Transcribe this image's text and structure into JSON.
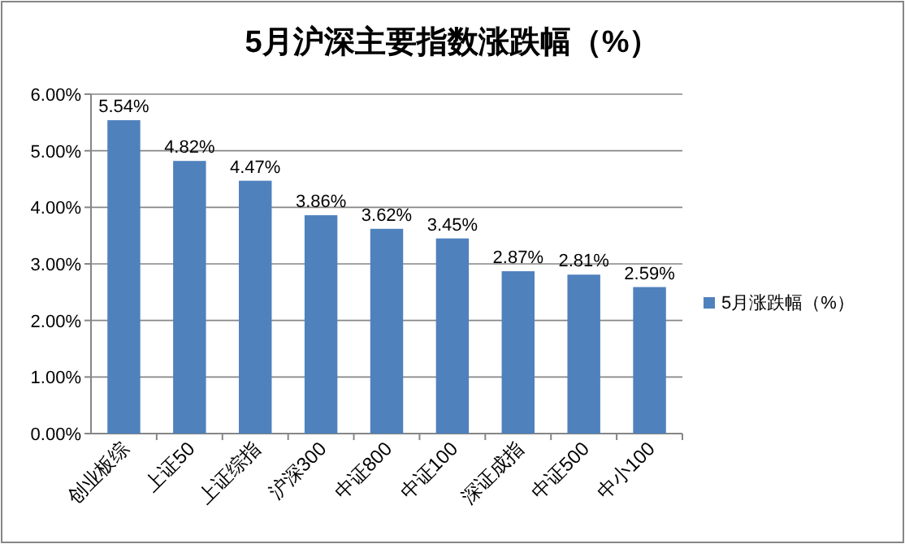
{
  "chart_data": {
    "type": "bar",
    "title": "5月沪深主要指数涨跌幅（%）",
    "categories": [
      "创业板综",
      "上证50",
      "上证综指",
      "沪深300",
      "中证800",
      "中证100",
      "深证成指",
      "中证500",
      "中小100"
    ],
    "series": [
      {
        "name": "5月涨跌幅（%）",
        "color": "#4f81bd",
        "values": [
          5.54,
          4.82,
          4.47,
          3.86,
          3.62,
          3.45,
          2.87,
          2.81,
          2.59
        ],
        "value_labels": [
          "5.54%",
          "4.82%",
          "4.47%",
          "3.86%",
          "3.62%",
          "3.45%",
          "2.87%",
          "2.81%",
          "2.59%"
        ]
      }
    ],
    "ylim": [
      0,
      6
    ],
    "yticks": [
      {
        "value": 0,
        "label": "0.00%"
      },
      {
        "value": 1,
        "label": "1.00%"
      },
      {
        "value": 2,
        "label": "2.00%"
      },
      {
        "value": 3,
        "label": "3.00%"
      },
      {
        "value": 4,
        "label": "4.00%"
      },
      {
        "value": 5,
        "label": "5.00%"
      },
      {
        "value": 6,
        "label": "6.00%"
      }
    ],
    "grid": "y",
    "legend": "right"
  }
}
